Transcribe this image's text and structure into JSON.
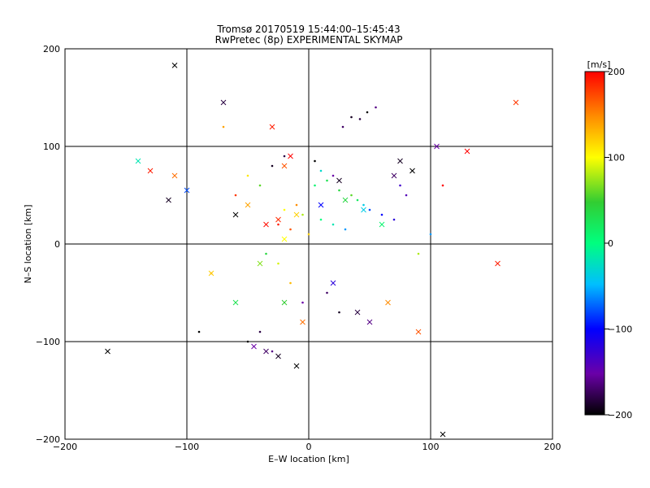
{
  "chart_data": {
    "type": "scatter",
    "title": "Tromsø 20170519 15:44:00–15:45:43",
    "subtitle": "RwPretec (8p) EXPERIMENTAL SKYMAP",
    "xlabel": "E–W location [km]",
    "ylabel": "N–S location [km]",
    "xlim": [
      -200,
      200
    ],
    "ylim": [
      -200,
      200
    ],
    "xticks": [
      "−200",
      "−100",
      "0",
      "100",
      "200"
    ],
    "yticks": [
      "200",
      "100",
      "0",
      "−100",
      "−200"
    ],
    "grid": true,
    "colorbar": {
      "label": "[m/s]",
      "range": [
        -200,
        200
      ],
      "ticks": [
        "200",
        "100",
        "0",
        "−100",
        "−200"
      ],
      "colors": [
        "#000000",
        "#8b00ff",
        "#0000ff",
        "#00bfff",
        "#00ff7f",
        "#32cd32",
        "#ffff00",
        "#ff8c00",
        "#ff0000"
      ]
    },
    "series": [
      {
        "marker": "dot",
        "points": [
          [
            35,
            130,
            -190
          ],
          [
            42,
            128,
            -180
          ],
          [
            28,
            120,
            -170
          ],
          [
            48,
            135,
            -200
          ],
          [
            55,
            140,
            -160
          ],
          [
            20,
            70,
            -150
          ],
          [
            15,
            65,
            30
          ],
          [
            5,
            60,
            10
          ],
          [
            25,
            55,
            40
          ],
          [
            35,
            50,
            60
          ],
          [
            40,
            45,
            20
          ],
          [
            45,
            40,
            -40
          ],
          [
            50,
            35,
            -80
          ],
          [
            -10,
            40,
            150
          ],
          [
            -20,
            35,
            100
          ],
          [
            -5,
            30,
            80
          ],
          [
            10,
            25,
            0
          ],
          [
            20,
            20,
            -20
          ],
          [
            30,
            15,
            -60
          ],
          [
            0,
            10,
            120
          ],
          [
            -15,
            15,
            170
          ],
          [
            -25,
            20,
            190
          ],
          [
            60,
            30,
            -100
          ],
          [
            70,
            25,
            -120
          ],
          [
            75,
            60,
            -130
          ],
          [
            80,
            50,
            -140
          ],
          [
            -40,
            60,
            60
          ],
          [
            -50,
            70,
            110
          ],
          [
            -60,
            50,
            180
          ],
          [
            -30,
            80,
            -190
          ],
          [
            -20,
            90,
            -180
          ],
          [
            5,
            85,
            -200
          ],
          [
            10,
            75,
            -30
          ],
          [
            -35,
            -10,
            40
          ],
          [
            -25,
            -20,
            90
          ],
          [
            -15,
            -40,
            130
          ],
          [
            -5,
            -60,
            -150
          ],
          [
            15,
            -50,
            -170
          ],
          [
            25,
            -70,
            -190
          ],
          [
            -40,
            -90,
            -180
          ],
          [
            -30,
            -110,
            -160
          ],
          [
            -50,
            -100,
            -200
          ],
          [
            100,
            10,
            -60
          ],
          [
            90,
            -10,
            80
          ],
          [
            -80,
            -30,
            160
          ],
          [
            -90,
            -90,
            -200
          ],
          [
            110,
            60,
            200
          ],
          [
            -70,
            120,
            140
          ]
        ]
      },
      {
        "marker": "cross",
        "points": [
          [
            -110,
            183,
            -200
          ],
          [
            -70,
            145,
            -180
          ],
          [
            -30,
            120,
            190
          ],
          [
            -20,
            80,
            170
          ],
          [
            -15,
            90,
            200
          ],
          [
            -35,
            20,
            195
          ],
          [
            -25,
            25,
            185
          ],
          [
            -10,
            30,
            120
          ],
          [
            25,
            65,
            -190
          ],
          [
            70,
            70,
            -170
          ],
          [
            85,
            75,
            -200
          ],
          [
            75,
            85,
            -190
          ],
          [
            -45,
            -105,
            -150
          ],
          [
            -35,
            -110,
            -170
          ],
          [
            -25,
            -115,
            -190
          ],
          [
            -10,
            -125,
            -200
          ],
          [
            40,
            -70,
            -180
          ],
          [
            50,
            -80,
            -160
          ],
          [
            65,
            -60,
            150
          ],
          [
            90,
            -90,
            170
          ],
          [
            -130,
            75,
            190
          ],
          [
            -110,
            70,
            160
          ],
          [
            -100,
            55,
            -80
          ],
          [
            -115,
            45,
            -190
          ],
          [
            155,
            -20,
            190
          ],
          [
            170,
            145,
            180
          ],
          [
            -165,
            -110,
            -200
          ],
          [
            110,
            -195,
            -200
          ],
          [
            -80,
            -30,
            120
          ],
          [
            -60,
            -60,
            30
          ],
          [
            -40,
            -20,
            70
          ],
          [
            -20,
            5,
            100
          ],
          [
            10,
            40,
            -100
          ],
          [
            30,
            45,
            40
          ],
          [
            45,
            35,
            -40
          ],
          [
            60,
            20,
            10
          ],
          [
            -50,
            40,
            140
          ],
          [
            -60,
            30,
            -200
          ],
          [
            105,
            100,
            -150
          ],
          [
            130,
            95,
            200
          ],
          [
            -140,
            85,
            -20
          ],
          [
            -20,
            -60,
            50
          ],
          [
            -5,
            -80,
            160
          ],
          [
            20,
            -40,
            -120
          ]
        ]
      }
    ]
  }
}
